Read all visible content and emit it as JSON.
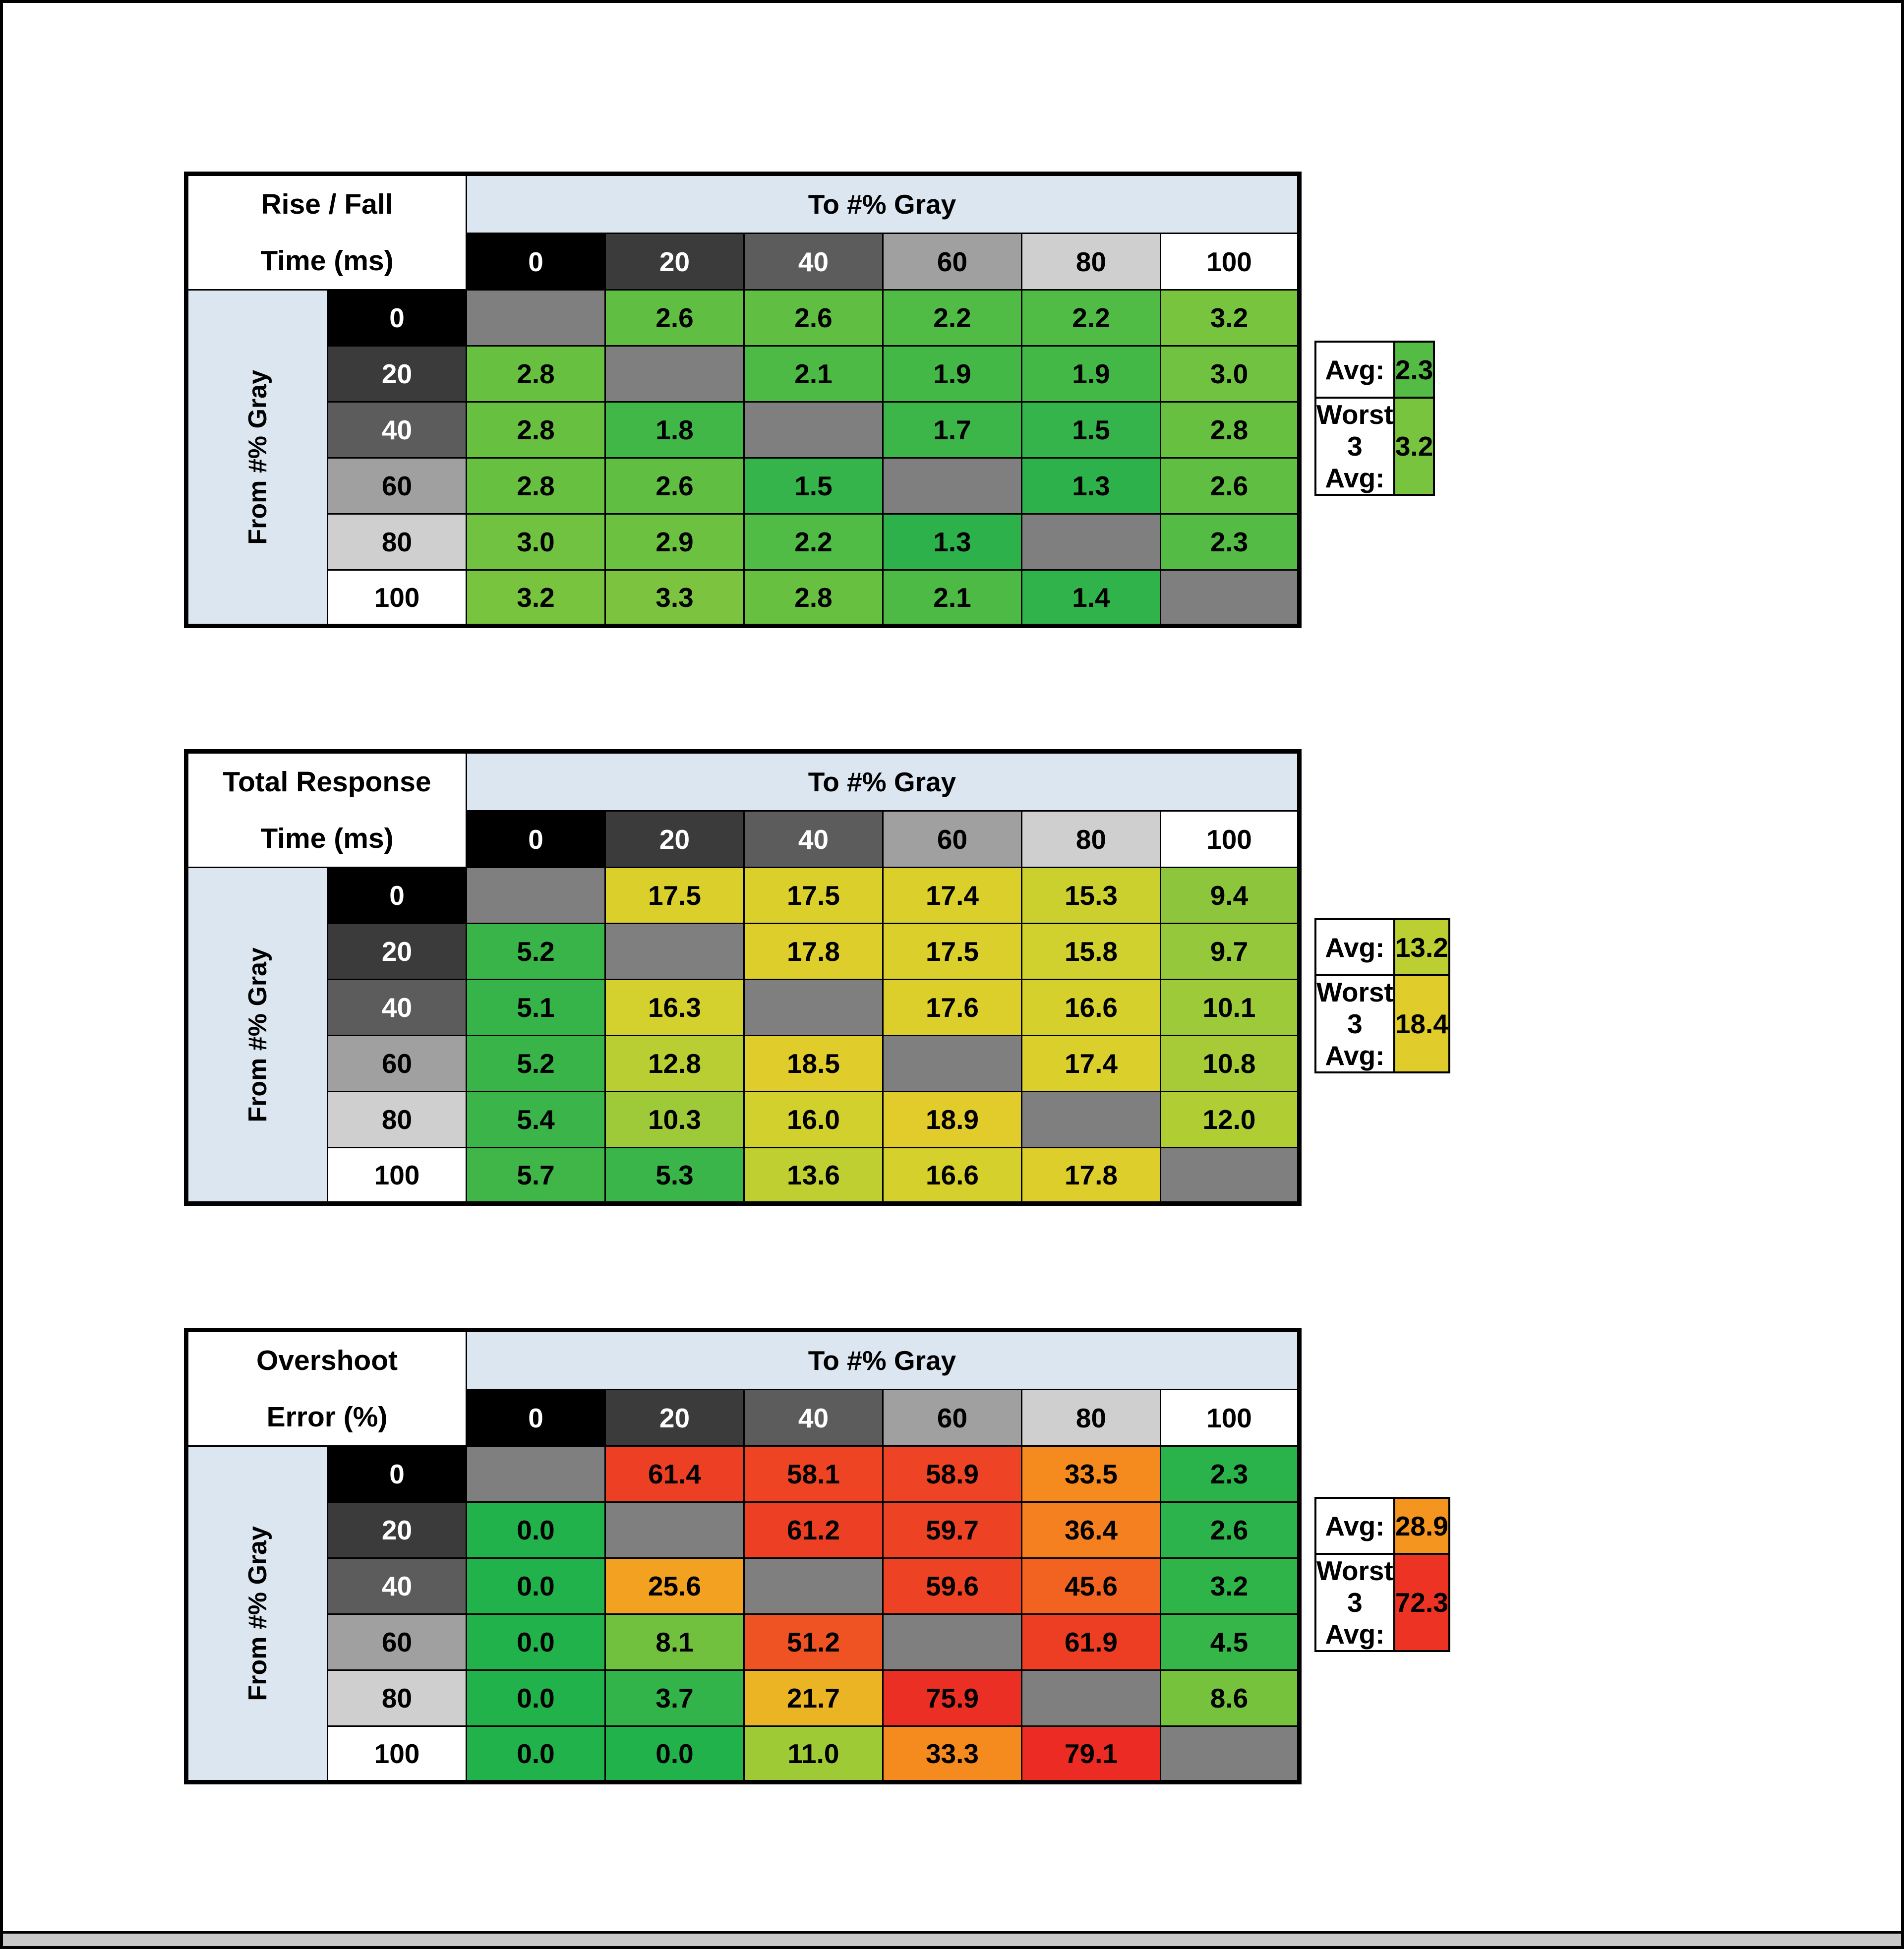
{
  "frame": {
    "border_color": "#000000",
    "background": "#FFFFFF"
  },
  "scrollbar": {
    "color": "#C8C8C8"
  },
  "header_fill": "#DCE6F1",
  "diagonal_fill": "#7F7F7F",
  "gray_scale_headers": [
    {
      "label": "0",
      "bg": "#000000",
      "fg": "#FFFFFF"
    },
    {
      "label": "20",
      "bg": "#3B3B3B",
      "fg": "#FFFFFF"
    },
    {
      "label": "40",
      "bg": "#5C5C5C",
      "fg": "#FFFFFF"
    },
    {
      "label": "60",
      "bg": "#A0A0A0",
      "fg": "#000000"
    },
    {
      "label": "80",
      "bg": "#CFCFCF",
      "fg": "#000000"
    },
    {
      "label": "100",
      "bg": "#FFFFFF",
      "fg": "#000000"
    }
  ],
  "chart_data": [
    {
      "type": "heatmap",
      "id": "rise-fall-time",
      "title": [
        "Rise / Fall",
        "Time (ms)"
      ],
      "col_axis_label": "To #% Gray",
      "row_axis_label": "From #% Gray",
      "columns": [
        "0",
        "20",
        "40",
        "60",
        "80",
        "100"
      ],
      "rows": [
        "0",
        "20",
        "40",
        "60",
        "80",
        "100"
      ],
      "values": [
        [
          null,
          "2.6",
          "2.6",
          "2.2",
          "2.2",
          "3.2"
        ],
        [
          "2.8",
          null,
          "2.1",
          "1.9",
          "1.9",
          "3.0"
        ],
        [
          "2.8",
          "1.8",
          null,
          "1.7",
          "1.5",
          "2.8"
        ],
        [
          "2.8",
          "2.6",
          "1.5",
          null,
          "1.3",
          "2.6"
        ],
        [
          "3.0",
          "2.9",
          "2.2",
          "1.3",
          null,
          "2.3"
        ],
        [
          "3.2",
          "3.3",
          "2.8",
          "2.1",
          "1.4",
          null
        ]
      ],
      "cell_colors": [
        [
          null,
          "#60BE42",
          "#60BE42",
          "#50BB45",
          "#50BB45",
          "#78C43F"
        ],
        [
          "#68C041",
          null,
          "#4CBA45",
          "#44B847",
          "#44B847",
          "#70C240"
        ],
        [
          "#68C041",
          "#40B747",
          null,
          "#3CB648",
          "#34B44A",
          "#68C041"
        ],
        [
          "#68C041",
          "#60BE42",
          "#34B44A",
          null,
          "#2DB24B",
          "#60BE42"
        ],
        [
          "#70C240",
          "#6CC141",
          "#50BB45",
          "#2DB24B",
          null,
          "#54BC44"
        ],
        [
          "#78C43F",
          "#7CC43F",
          "#68C041",
          "#4CBA45",
          "#30B34A",
          null
        ]
      ],
      "summary": {
        "avg_label": "Avg:",
        "avg": "2.3",
        "avg_color": "#54BC44",
        "worst_label": "Worst 3 Avg:",
        "worst": "3.2",
        "worst_color": "#78C43F"
      }
    },
    {
      "type": "heatmap",
      "id": "total-response-time",
      "title": [
        "Total Response",
        "Time (ms)"
      ],
      "col_axis_label": "To #% Gray",
      "row_axis_label": "From #% Gray",
      "columns": [
        "0",
        "20",
        "40",
        "60",
        "80",
        "100"
      ],
      "rows": [
        "0",
        "20",
        "40",
        "60",
        "80",
        "100"
      ],
      "values": [
        [
          null,
          "17.5",
          "17.5",
          "17.4",
          "15.3",
          "9.4"
        ],
        [
          "5.2",
          null,
          "17.8",
          "17.5",
          "15.8",
          "9.7"
        ],
        [
          "5.1",
          "16.3",
          null,
          "17.6",
          "16.6",
          "10.1"
        ],
        [
          "5.2",
          "12.8",
          "18.5",
          null,
          "17.4",
          "10.8"
        ],
        [
          "5.4",
          "10.3",
          "16.0",
          "18.9",
          null,
          "12.0"
        ],
        [
          "5.7",
          "5.3",
          "13.6",
          "16.6",
          "17.8",
          null
        ]
      ],
      "cell_colors": [
        [
          null,
          "#DBCF2C",
          "#DBCF2C",
          "#DBCF2C",
          "#CCD02E",
          "#8DC63D"
        ],
        [
          "#38B449",
          null,
          "#DDCE2B",
          "#DBCF2C",
          "#D0D02E",
          "#95C83B"
        ],
        [
          "#36B44A",
          "#D4D02D",
          null,
          "#DCCF2C",
          "#D6D02C",
          "#9CCA39"
        ],
        [
          "#38B449",
          "#B8CE32",
          "#E0CD2B",
          null,
          "#DBCF2C",
          "#A7CB37"
        ],
        [
          "#3BB549",
          "#9ECA39",
          "#D1D02D",
          "#E2CC2B",
          null,
          "#B1CD34"
        ],
        [
          "#41B648",
          "#3AB549",
          "#BFCF31",
          "#D6D02C",
          "#DDCE2B",
          null
        ]
      ],
      "summary": {
        "avg_label": "Avg:",
        "avg": "13.2",
        "avg_color": "#BCCF32",
        "worst_label": "Worst 3 Avg:",
        "worst": "18.4",
        "worst_color": "#E0CD2B"
      }
    },
    {
      "type": "heatmap",
      "id": "overshoot-error",
      "title": [
        "Overshoot",
        "Error (%)"
      ],
      "col_axis_label": "To #% Gray",
      "row_axis_label": "From #% Gray",
      "columns": [
        "0",
        "20",
        "40",
        "60",
        "80",
        "100"
      ],
      "rows": [
        "0",
        "20",
        "40",
        "60",
        "80",
        "100"
      ],
      "values": [
        [
          null,
          "61.4",
          "58.1",
          "58.9",
          "33.5",
          "2.3"
        ],
        [
          "0.0",
          null,
          "61.2",
          "59.7",
          "36.4",
          "2.6"
        ],
        [
          "0.0",
          "25.6",
          null,
          "59.6",
          "45.6",
          "3.2"
        ],
        [
          "0.0",
          "8.1",
          "51.2",
          null,
          "61.9",
          "4.5"
        ],
        [
          "0.0",
          "3.7",
          "21.7",
          "75.9",
          null,
          "8.6"
        ],
        [
          "0.0",
          "0.0",
          "11.0",
          "33.3",
          "79.1",
          null
        ]
      ],
      "cell_colors": [
        [
          null,
          "#ED3F24",
          "#EE4424",
          "#EE4324",
          "#F58A1E",
          "#2BB34B"
        ],
        [
          "#21B24B",
          null,
          "#ED3F24",
          "#EE4224",
          "#F5801F",
          "#2CB34B"
        ],
        [
          "#21B24B",
          "#F2A120",
          null,
          "#EE4224",
          "#F26321",
          "#2FB44A"
        ],
        [
          "#21B24B",
          "#72C13E",
          "#F05323",
          null,
          "#ED3E24",
          "#36B549"
        ],
        [
          "#21B24B",
          "#32B44A",
          "#EBB424",
          "#EC2F24",
          null,
          "#77C23D"
        ],
        [
          "#21B24B",
          "#21B24B",
          "#9ECA36",
          "#F58A1E",
          "#EB2B24",
          null
        ]
      ],
      "summary": {
        "avg_label": "Avg:",
        "avg": "28.9",
        "avg_color": "#F49520",
        "worst_label": "Worst 3 Avg:",
        "worst": "72.3",
        "worst_color": "#EC3324"
      }
    }
  ]
}
